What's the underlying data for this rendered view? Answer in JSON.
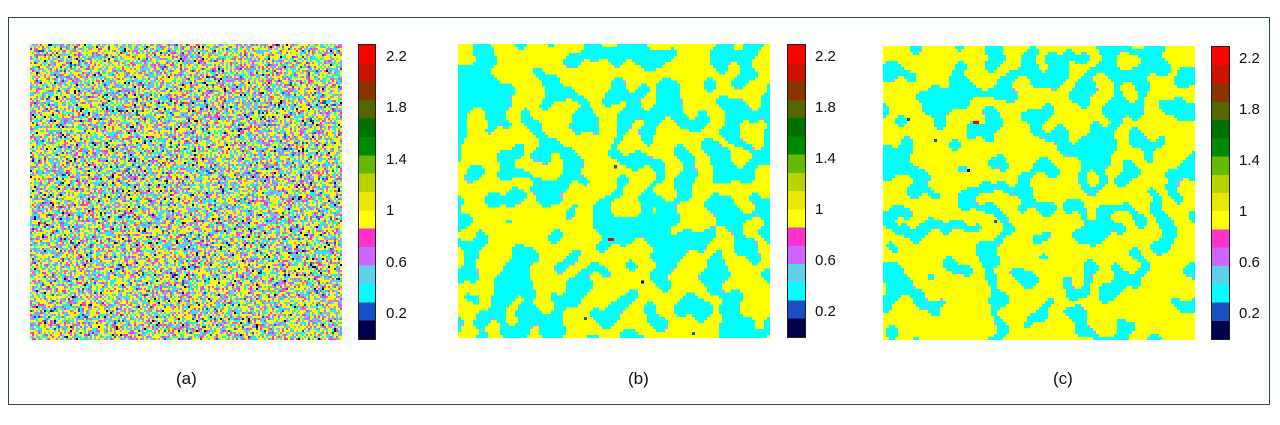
{
  "chart_data": [
    {
      "type": "heatmap",
      "caption": "(a)",
      "pattern": "random",
      "grid": "pixel field",
      "colorbar": {
        "ticks": [
          2.2,
          1.8,
          1.4,
          1,
          0.6,
          0.2
        ],
        "range": [
          0,
          2.3
        ]
      }
    },
    {
      "type": "heatmap",
      "caption": "(b)",
      "pattern": "coarsened clusters (cyan / yellow domains)",
      "colorbar": {
        "ticks": [
          2.2,
          1.8,
          1.4,
          1,
          0.6,
          0.2
        ],
        "range": [
          0,
          2.3
        ]
      }
    },
    {
      "type": "heatmap",
      "caption": "(c)",
      "pattern": "coarsened clusters (cyan / yellow domains)",
      "colorbar": {
        "ticks": [
          2.2,
          1.8,
          1.4,
          1,
          0.6,
          0.2
        ],
        "range": [
          0,
          2.3
        ]
      }
    }
  ],
  "colormap": [
    "#00004a",
    "#1a4dc8",
    "#00ffff",
    "#5fd0e8",
    "#cc66ff",
    "#ff33cc",
    "#ffff00",
    "#e8e800",
    "#b8d400",
    "#66b800",
    "#008a00",
    "#007000",
    "#556600",
    "#8a3300",
    "#cc1100",
    "#ff0000"
  ]
}
